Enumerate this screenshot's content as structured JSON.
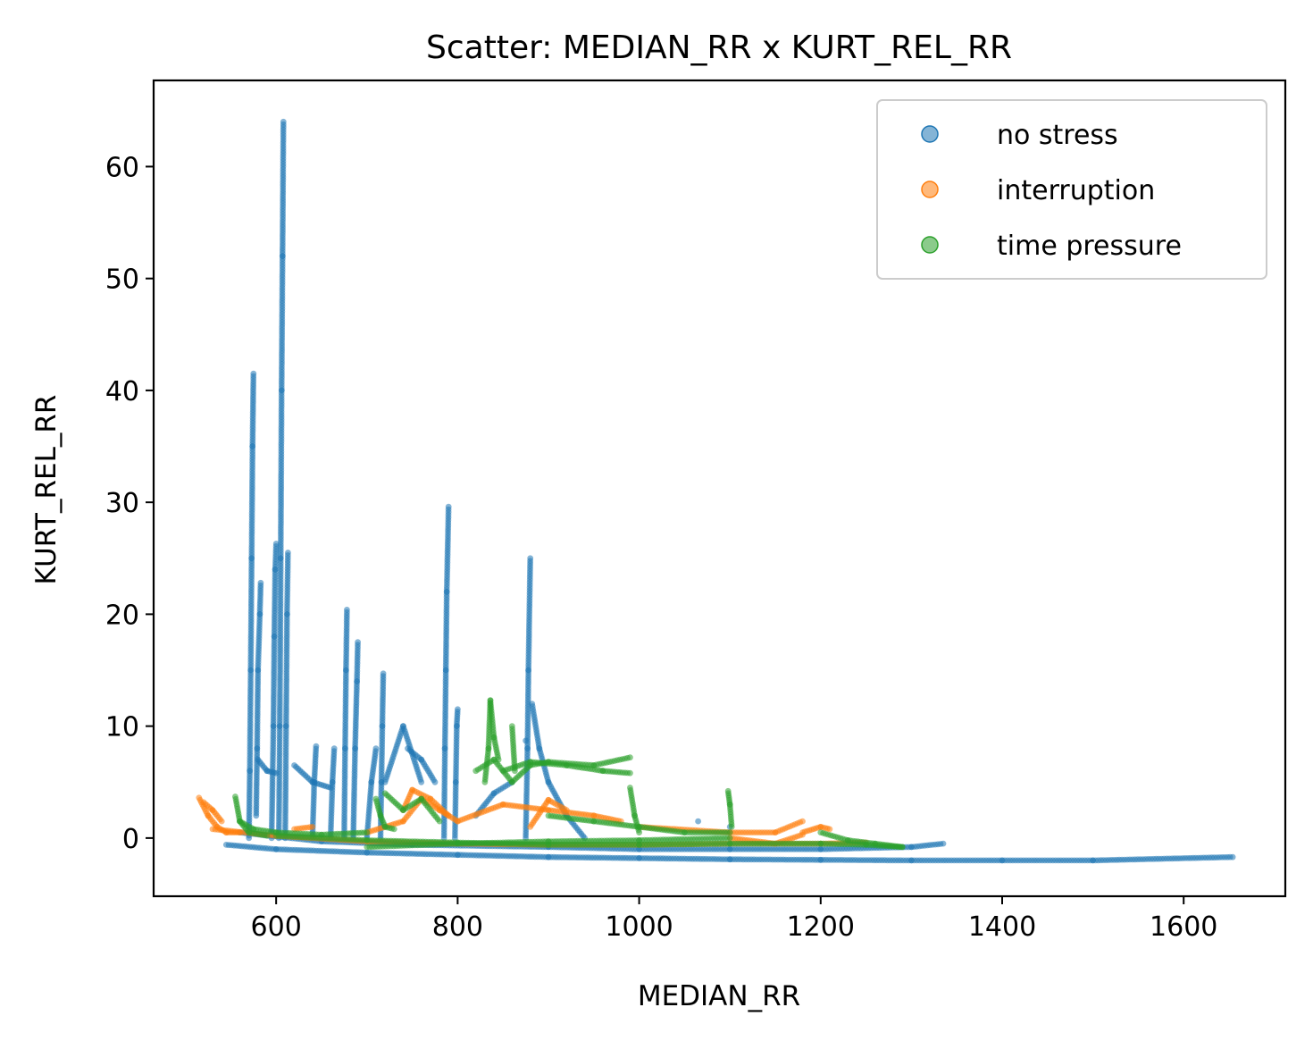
{
  "chart_data": {
    "type": "scatter",
    "title": "Scatter: MEDIAN_RR x KURT_REL_RR",
    "xlabel": "MEDIAN_RR",
    "ylabel": "KURT_REL_RR",
    "xlim": [
      465,
      1712
    ],
    "ylim": [
      -5.2,
      67.7
    ],
    "xticks": [
      600,
      800,
      1000,
      1200,
      1400,
      1600
    ],
    "yticks": [
      0,
      10,
      20,
      30,
      40,
      50,
      60
    ],
    "legend_position": "top-right",
    "grid": false,
    "series": [
      {
        "name": "no stress",
        "color": "#1f77b4",
        "segments": [
          [
            [
              545,
              -0.6
            ],
            [
              600,
              -1.0
            ],
            [
              700,
              -1.3
            ],
            [
              800,
              -1.5
            ],
            [
              900,
              -1.7
            ],
            [
              1000,
              -1.8
            ],
            [
              1100,
              -1.9
            ],
            [
              1200,
              -1.95
            ],
            [
              1300,
              -2.0
            ],
            [
              1400,
              -2.0
            ],
            [
              1500,
              -2.0
            ],
            [
              1654,
              -1.7
            ]
          ],
          [
            [
              560,
              0.5
            ],
            [
              650,
              -0.3
            ],
            [
              750,
              -0.6
            ],
            [
              900,
              -0.8
            ],
            [
              1000,
              -1.0
            ],
            [
              1100,
              -1.0
            ],
            [
              1200,
              -1.0
            ],
            [
              1300,
              -0.8
            ],
            [
              1335,
              -0.5
            ]
          ],
          [
            [
              570,
              0.0
            ],
            [
              571,
              6
            ],
            [
              572,
              15
            ],
            [
              573,
              25
            ],
            [
              574,
              35
            ],
            [
              575,
              41.5
            ]
          ],
          [
            [
              578,
              2
            ],
            [
              579,
              8
            ],
            [
              580,
              15
            ],
            [
              582,
              20
            ],
            [
              583,
              22.8
            ]
          ],
          [
            [
              580,
              7
            ],
            [
              590,
              6
            ],
            [
              600,
              5.8
            ]
          ],
          [
            [
              595,
              0
            ],
            [
              597,
              10
            ],
            [
              598,
              18
            ],
            [
              599,
              24
            ],
            [
              600,
              26.3
            ]
          ],
          [
            [
              603,
              0
            ],
            [
              604,
              10
            ],
            [
              605,
              25
            ],
            [
              606,
              40
            ],
            [
              607,
              52
            ],
            [
              608,
              64
            ]
          ],
          [
            [
              610,
              0
            ],
            [
              611,
              10
            ],
            [
              612,
              20
            ],
            [
              613,
              25.5
            ]
          ],
          [
            [
              620,
              6.5
            ],
            [
              640,
              5
            ],
            [
              660,
              4.5
            ]
          ],
          [
            [
              640,
              0
            ],
            [
              642,
              5
            ],
            [
              644,
              8.2
            ]
          ],
          [
            [
              660,
              0
            ],
            [
              662,
              5
            ],
            [
              664,
              8.0
            ]
          ],
          [
            [
              675,
              0
            ],
            [
              676,
              8
            ],
            [
              677,
              15
            ],
            [
              678,
              20.4
            ]
          ],
          [
            [
              685,
              0
            ],
            [
              687,
              8
            ],
            [
              689,
              14
            ],
            [
              690,
              17.5
            ]
          ],
          [
            [
              700,
              0
            ],
            [
              705,
              5
            ],
            [
              710,
              8
            ]
          ],
          [
            [
              715,
              0
            ],
            [
              716,
              5
            ],
            [
              717,
              10
            ],
            [
              718,
              14.7
            ]
          ],
          [
            [
              720,
              5
            ],
            [
              740,
              10
            ],
            [
              760,
              5
            ]
          ],
          [
            [
              745,
              8
            ],
            [
              760,
              7
            ],
            [
              775,
              5
            ]
          ],
          [
            [
              785,
              0
            ],
            [
              786,
              8
            ],
            [
              787,
              15
            ],
            [
              788,
              22
            ],
            [
              790,
              29.6
            ]
          ],
          [
            [
              797,
              0
            ],
            [
              798,
              5
            ],
            [
              799,
              10
            ],
            [
              800,
              11.5
            ]
          ],
          [
            [
              820,
              2
            ],
            [
              840,
              4
            ],
            [
              860,
              5
            ]
          ],
          [
            [
              875,
              0
            ],
            [
              877,
              8
            ],
            [
              878,
              15
            ],
            [
              880,
              25.0
            ]
          ],
          [
            [
              882,
              12
            ],
            [
              890,
              8
            ],
            [
              900,
              5
            ],
            [
              920,
              2
            ],
            [
              940,
              0
            ]
          ],
          [
            [
              875,
              8.7
            ]
          ],
          [
            [
              1065,
              1.5
            ]
          ],
          [
            [
              1100,
              1.0
            ]
          ]
        ]
      },
      {
        "name": "interruption",
        "color": "#ff7f0e",
        "segments": [
          [
            [
              515,
              3.6
            ],
            [
              525,
              2.0
            ],
            [
              535,
              1.0
            ],
            [
              545,
              0.5
            ],
            [
              560,
              0.5
            ]
          ],
          [
            [
              520,
              3.2
            ],
            [
              530,
              2.5
            ],
            [
              540,
              1.5
            ]
          ],
          [
            [
              530,
              0.8
            ],
            [
              600,
              0.2
            ],
            [
              700,
              -0.3
            ],
            [
              800,
              -0.5
            ],
            [
              900,
              -0.6
            ],
            [
              1000,
              -0.6
            ],
            [
              1100,
              -0.5
            ],
            [
              1200,
              -0.5
            ],
            [
              1250,
              -0.4
            ]
          ],
          [
            [
              620,
              0.8
            ],
            [
              640,
              1.0
            ]
          ],
          [
            [
              700,
              0.5
            ],
            [
              740,
              1.5
            ],
            [
              760,
              3.5
            ],
            [
              780,
              2.5
            ],
            [
              800,
              1.5
            ]
          ],
          [
            [
              740,
              2.5
            ],
            [
              750,
              4.3
            ],
            [
              770,
              3.5
            ],
            [
              790,
              2.0
            ]
          ],
          [
            [
              800,
              1.5
            ],
            [
              850,
              3.0
            ],
            [
              900,
              2.5
            ],
            [
              950,
              2.0
            ],
            [
              980,
              1.5
            ]
          ],
          [
            [
              880,
              1.0
            ],
            [
              900,
              3.4
            ],
            [
              920,
              2.5
            ]
          ],
          [
            [
              1000,
              1.0
            ],
            [
              1100,
              0.5
            ],
            [
              1150,
              0.5
            ],
            [
              1180,
              1.5
            ]
          ],
          [
            [
              1180,
              0.5
            ],
            [
              1200,
              1.0
            ],
            [
              1210,
              0.8
            ]
          ],
          [
            [
              1100,
              0.0
            ],
            [
              1150,
              -0.5
            ],
            [
              1180,
              0.3
            ]
          ]
        ]
      },
      {
        "name": "time pressure",
        "color": "#2ca02c",
        "segments": [
          [
            [
              555,
              3.7
            ],
            [
              560,
              1.5
            ],
            [
              570,
              0.5
            ],
            [
              590,
              0.2
            ]
          ],
          [
            [
              560,
              1.5
            ],
            [
              575,
              0.8
            ],
            [
              600,
              0.5
            ],
            [
              650,
              0.3
            ],
            [
              700,
              0.5
            ]
          ],
          [
            [
              600,
              0.2
            ],
            [
              700,
              -0.2
            ],
            [
              800,
              -0.4
            ],
            [
              900,
              -0.6
            ],
            [
              1000,
              -0.6
            ],
            [
              1100,
              -0.5
            ],
            [
              1200,
              -0.5
            ],
            [
              1250,
              -0.6
            ],
            [
              1290,
              -0.8
            ]
          ],
          [
            [
              710,
              3.5
            ],
            [
              715,
              2.0
            ],
            [
              720,
              1.0
            ],
            [
              730,
              0.8
            ]
          ],
          [
            [
              720,
              4.0
            ],
            [
              740,
              2.5
            ],
            [
              760,
              3.5
            ],
            [
              780,
              1.5
            ]
          ],
          [
            [
              830,
              5.0
            ],
            [
              834,
              8
            ],
            [
              836,
              12.3
            ],
            [
              840,
              9
            ],
            [
              845,
              7
            ]
          ],
          [
            [
              820,
              6.0
            ],
            [
              840,
              7.0
            ],
            [
              860,
              5.0
            ],
            [
              880,
              6.5
            ],
            [
              900,
              6.8
            ],
            [
              950,
              6.5
            ],
            [
              990,
              7.2
            ]
          ],
          [
            [
              850,
              6.0
            ],
            [
              880,
              6.8
            ],
            [
              920,
              6.5
            ],
            [
              960,
              6.0
            ],
            [
              990,
              5.8
            ]
          ],
          [
            [
              860,
              10
            ],
            [
              863,
              6
            ]
          ],
          [
            [
              700,
              -0.8
            ],
            [
              800,
              -0.5
            ],
            [
              900,
              -0.3
            ],
            [
              1000,
              -0.2
            ],
            [
              1100,
              0.0
            ]
          ],
          [
            [
              900,
              2.0
            ],
            [
              950,
              1.5
            ],
            [
              1000,
              1.0
            ],
            [
              1050,
              0.5
            ],
            [
              1100,
              0.5
            ]
          ],
          [
            [
              1098,
              4.2
            ],
            [
              1100,
              3.0
            ],
            [
              1102,
              1.0
            ]
          ],
          [
            [
              990,
              4.5
            ],
            [
              995,
              2.0
            ],
            [
              1000,
              0.5
            ]
          ],
          [
            [
              1200,
              0.5
            ],
            [
              1230,
              -0.2
            ],
            [
              1260,
              -0.5
            ],
            [
              1290,
              -0.8
            ]
          ]
        ]
      }
    ]
  }
}
